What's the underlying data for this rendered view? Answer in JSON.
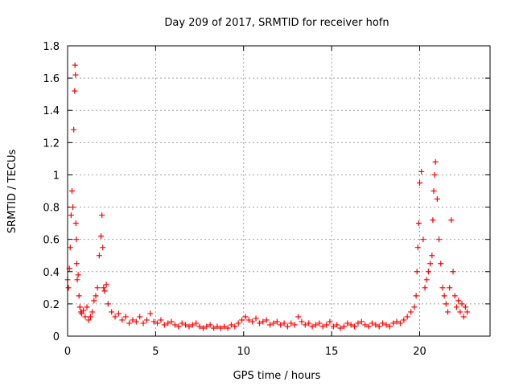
{
  "chart_data": {
    "type": "scatter",
    "title": "Day 209 of 2017, SRMTID for receiver hofn",
    "xlabel": "GPS time / hours",
    "ylabel": "SRMTID / TECUs",
    "xlim": [
      0,
      24
    ],
    "ylim": [
      0,
      1.8
    ],
    "xticks": [
      0,
      5,
      10,
      15,
      20
    ],
    "yticks": [
      0,
      0.2,
      0.4,
      0.6,
      0.8,
      1,
      1.2,
      1.4,
      1.6,
      1.8
    ],
    "ytick_labels": [
      "0",
      "0.2",
      "0.4",
      "0.6",
      "0.8",
      "1",
      "1.2",
      "1.4",
      "1.6",
      "1.8"
    ],
    "grid": true,
    "marker": "+",
    "series": [
      {
        "name": "SRMTID",
        "color": "#ff0000",
        "x": [
          0.0,
          0.05,
          0.1,
          0.15,
          0.2,
          0.25,
          0.3,
          0.35,
          0.4,
          0.42,
          0.45,
          0.47,
          0.5,
          0.52,
          0.55,
          0.6,
          0.65,
          0.7,
          0.75,
          0.8,
          0.9,
          1.0,
          1.1,
          1.2,
          1.3,
          1.4,
          1.5,
          1.6,
          1.7,
          1.8,
          1.9,
          1.95,
          2.0,
          2.05,
          2.1,
          2.2,
          2.3,
          2.5,
          2.7,
          2.9,
          3.1,
          3.3,
          3.5,
          3.7,
          3.9,
          4.1,
          4.3,
          4.5,
          4.7,
          4.9,
          5.1,
          5.3,
          5.5,
          5.7,
          5.9,
          6.1,
          6.3,
          6.5,
          6.7,
          6.9,
          7.1,
          7.3,
          7.5,
          7.7,
          7.9,
          8.1,
          8.3,
          8.5,
          8.7,
          8.9,
          9.1,
          9.3,
          9.5,
          9.7,
          9.9,
          10.1,
          10.3,
          10.5,
          10.7,
          10.9,
          11.1,
          11.3,
          11.5,
          11.7,
          11.9,
          12.1,
          12.3,
          12.5,
          12.7,
          12.9,
          13.1,
          13.3,
          13.5,
          13.7,
          13.9,
          14.1,
          14.3,
          14.5,
          14.7,
          14.9,
          15.1,
          15.3,
          15.5,
          15.7,
          15.9,
          16.1,
          16.3,
          16.5,
          16.7,
          16.9,
          17.1,
          17.3,
          17.5,
          17.7,
          17.9,
          18.1,
          18.3,
          18.5,
          18.7,
          18.9,
          19.1,
          19.3,
          19.5,
          19.7,
          19.8,
          19.85,
          19.9,
          19.95,
          20.0,
          20.1,
          20.2,
          20.3,
          20.4,
          20.5,
          20.6,
          20.7,
          20.75,
          20.8,
          20.85,
          20.9,
          21.0,
          21.1,
          21.2,
          21.3,
          21.4,
          21.5,
          21.6,
          21.7,
          21.8,
          21.9,
          22.0,
          22.1,
          22.2,
          22.3,
          22.4,
          22.5,
          22.6,
          22.7
        ],
        "y": [
          0.35,
          0.3,
          0.42,
          0.55,
          0.75,
          0.9,
          0.8,
          1.28,
          1.52,
          1.68,
          1.62,
          0.7,
          0.6,
          0.45,
          0.35,
          0.38,
          0.25,
          0.18,
          0.15,
          0.14,
          0.16,
          0.12,
          0.18,
          0.1,
          0.12,
          0.15,
          0.22,
          0.25,
          0.3,
          0.5,
          0.62,
          0.75,
          0.55,
          0.3,
          0.28,
          0.32,
          0.2,
          0.15,
          0.12,
          0.14,
          0.1,
          0.12,
          0.08,
          0.1,
          0.09,
          0.12,
          0.08,
          0.1,
          0.14,
          0.09,
          0.08,
          0.1,
          0.07,
          0.08,
          0.09,
          0.07,
          0.06,
          0.08,
          0.07,
          0.06,
          0.07,
          0.08,
          0.06,
          0.05,
          0.06,
          0.07,
          0.05,
          0.06,
          0.05,
          0.06,
          0.05,
          0.07,
          0.06,
          0.08,
          0.1,
          0.12,
          0.1,
          0.09,
          0.11,
          0.08,
          0.09,
          0.1,
          0.07,
          0.08,
          0.09,
          0.07,
          0.08,
          0.06,
          0.08,
          0.07,
          0.12,
          0.09,
          0.07,
          0.08,
          0.06,
          0.07,
          0.08,
          0.06,
          0.07,
          0.09,
          0.06,
          0.07,
          0.05,
          0.06,
          0.08,
          0.07,
          0.06,
          0.08,
          0.09,
          0.07,
          0.06,
          0.08,
          0.07,
          0.06,
          0.08,
          0.07,
          0.06,
          0.08,
          0.09,
          0.08,
          0.1,
          0.12,
          0.15,
          0.18,
          0.25,
          0.4,
          0.55,
          0.7,
          0.95,
          1.02,
          0.6,
          0.3,
          0.35,
          0.4,
          0.45,
          0.5,
          0.72,
          0.9,
          1.0,
          1.08,
          0.85,
          0.6,
          0.45,
          0.3,
          0.25,
          0.2,
          0.15,
          0.3,
          0.72,
          0.4,
          0.25,
          0.18,
          0.22,
          0.15,
          0.2,
          0.12,
          0.18,
          0.15
        ]
      }
    ]
  }
}
